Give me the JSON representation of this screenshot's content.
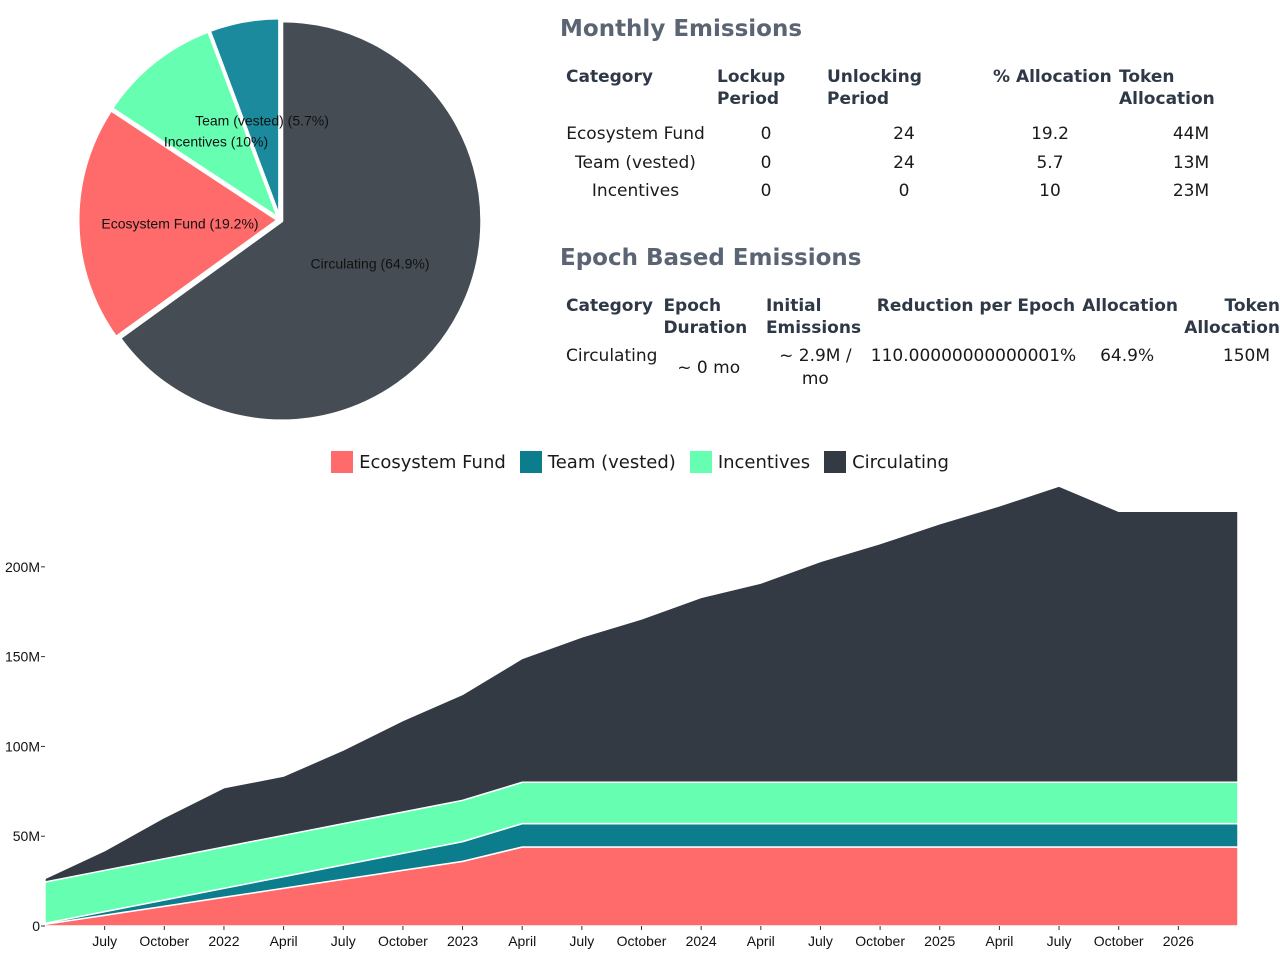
{
  "chart_data": [
    {
      "type": "pie",
      "slices": [
        {
          "label": "Ecosystem Fund (19.2%)",
          "value": 19.2,
          "color": "#ff6b6b"
        },
        {
          "label": "Team (vested) (5.7%)",
          "value": 5.7,
          "color": "#1a8a9c"
        },
        {
          "label": "Incentives (10%)",
          "value": 10,
          "color": "#66ffb2"
        },
        {
          "label": "Circulating (64.9%)",
          "value": 64.9,
          "color": "#454c54"
        }
      ]
    },
    {
      "type": "area",
      "stacked": true,
      "x": [
        "2021-04",
        "2021-07",
        "2021-10",
        "2022-01",
        "2022-04",
        "2022-07",
        "2022-10",
        "2023-01",
        "2023-04",
        "2023-07",
        "2023-10",
        "2024-01",
        "2024-04",
        "2024-07",
        "2024-10",
        "2025-01",
        "2025-04",
        "2025-07",
        "2025-10",
        "2026-01",
        "2026-04"
      ],
      "series": [
        {
          "name": "Ecosystem Fund",
          "color": "#ff6b6b",
          "values": [
            1,
            6,
            11,
            16,
            21,
            26,
            31,
            36,
            44,
            44,
            44,
            44,
            44,
            44,
            44,
            44,
            44,
            44,
            44,
            44,
            44
          ]
        },
        {
          "name": "Team (vested)",
          "color": "#0c7d8c",
          "values": [
            0.5,
            2,
            3.5,
            5,
            6.5,
            8,
            9.5,
            11,
            13,
            13,
            13,
            13,
            13,
            13,
            13,
            13,
            13,
            13,
            13,
            13,
            13
          ]
        },
        {
          "name": "Incentives",
          "color": "#66ffb2",
          "values": [
            23,
            23,
            23,
            23,
            23,
            23,
            23,
            23,
            23,
            23,
            23,
            23,
            23,
            23,
            23,
            23,
            23,
            23,
            23,
            23,
            23
          ]
        },
        {
          "name": "Circulating",
          "color": "#333a44",
          "values": [
            2,
            11,
            23,
            33,
            33,
            41,
            51,
            59,
            69,
            81,
            91,
            103,
            111,
            123,
            133,
            144,
            154,
            165,
            151,
            151,
            151
          ]
        }
      ],
      "x_tick_labels": [
        "July",
        "October",
        "2022",
        "April",
        "July",
        "October",
        "2023",
        "April",
        "July",
        "October",
        "2024",
        "April",
        "July",
        "October",
        "2025",
        "April",
        "July",
        "October",
        "2026"
      ],
      "y_ticks": [
        "0",
        "50M",
        "100M",
        "150M",
        "200M"
      ],
      "ylim": [
        0,
        240
      ],
      "y_unit": "M"
    }
  ],
  "monthly": {
    "title": "Monthly Emissions",
    "headers": {
      "category": "Category",
      "lockup_1": "Lockup",
      "lockup_2": "Period",
      "unlocking": "Unlocking Period",
      "pct": "% Allocation",
      "token": "Token Allocation"
    },
    "rows": [
      {
        "category": "Ecosystem Fund",
        "lockup": "0",
        "unlocking": "24",
        "pct": "19.2",
        "token": "44M"
      },
      {
        "category": "Team (vested)",
        "lockup": "0",
        "unlocking": "24",
        "pct": "5.7",
        "token": "13M"
      },
      {
        "category": "Incentives",
        "lockup": "0",
        "unlocking": "0",
        "pct": "10",
        "token": "23M"
      }
    ]
  },
  "epoch": {
    "title": "Epoch Based Emissions",
    "headers": {
      "category": "Category",
      "duration_1": "Epoch",
      "duration_2": "Duration",
      "initial_1": "Initial",
      "initial_2": "Emissions",
      "reduction": "Reduction per Epoch",
      "allocation": "Allocation",
      "token_1": "Token",
      "token_2": "Allocation"
    },
    "row": {
      "category": "Circulating",
      "duration": "~ 0 mo",
      "initial_1": "~ 2.9M /",
      "initial_2": "mo",
      "reduction": "110.00000000000001%",
      "allocation": "64.9%",
      "token": "150M"
    }
  },
  "legend": [
    {
      "label": "Ecosystem Fund",
      "color": "#ff6b6b"
    },
    {
      "label": "Team (vested)",
      "color": "#0c7d8c"
    },
    {
      "label": "Incentives",
      "color": "#66ffb2"
    },
    {
      "label": "Circulating",
      "color": "#333a44"
    }
  ]
}
